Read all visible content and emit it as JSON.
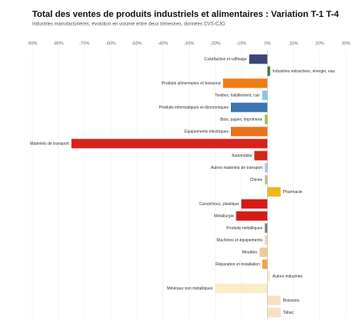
{
  "chart_data": {
    "type": "hbar",
    "title": "Total des ventes de produits industriels et alimentaires : Variation T-1 T-4",
    "subtitle": "Industries manufacturières, évolution en volume entre deux trimestres, données CVS-CJO",
    "categories": [
      "Cokéfaction et raffinage",
      "Industries extractives, énergie, eau",
      "Produits alimentaires et boissons",
      "Textiles, habillement, cuir",
      "Produits informatiques et électroniques",
      "Bois, papier, imprimerie",
      "Équipements électriques",
      "Matériels de transport",
      "Automobile",
      "Autres matériels de transport",
      "Chimie",
      "Pharmacie",
      "Caoutchouc, plastique",
      "Métallurgie",
      "Produits métalliques",
      "Machines et équipements",
      "Meubles",
      "Réparation et installation",
      "Autres industries",
      "Minéraux non métalliques",
      "Boissons",
      "Tabac"
    ],
    "values": [
      -7,
      1,
      -17,
      -2,
      -14,
      -1,
      -14,
      -75,
      -5,
      -1,
      -1,
      5,
      -10,
      -12,
      -1,
      -1,
      -3,
      -2,
      1,
      -20,
      5,
      5
    ],
    "colors": [
      "#3b4577",
      "#2e7d32",
      "#f07c12",
      "#8cc4e8",
      "#3d74b3",
      "#9bbf3a",
      "#e8731a",
      "#d62418",
      "#d62418",
      "#9ec9e8",
      "#c8b98a",
      "#f2b51b",
      "#d61a1a",
      "#d61a1a",
      "#7a7a7a",
      "#f6d3a8",
      "#f3c79a",
      "#f0a640",
      "#f9e7cf",
      "#f8edc4",
      "#f7e1c4",
      "#f7e1c4"
    ],
    "xlim": [
      -90,
      30
    ],
    "xticks": [
      {
        "value": -90,
        "label": "-90%"
      },
      {
        "value": -80,
        "label": "-80%"
      },
      {
        "value": -70,
        "label": "-70%"
      },
      {
        "value": -60,
        "label": "-60%"
      },
      {
        "value": -50,
        "label": "-50%"
      },
      {
        "value": -40,
        "label": "-40%"
      },
      {
        "value": -30,
        "label": "-30%"
      },
      {
        "value": -20,
        "label": "-20%"
      },
      {
        "value": -10,
        "label": "-10%"
      },
      {
        "value": 0,
        "label": "0%"
      },
      {
        "value": 10,
        "label": "10%"
      },
      {
        "value": 20,
        "label": "20%"
      },
      {
        "value": 30,
        "label": "30%"
      }
    ],
    "grid": true
  }
}
